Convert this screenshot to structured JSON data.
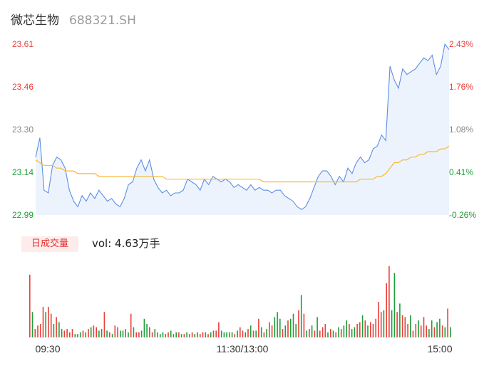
{
  "header": {
    "name": "微芯生物",
    "code": "688321.SH"
  },
  "volume_panel": {
    "badge": "日成交量",
    "summary": "vol: 4.63万手"
  },
  "colors": {
    "up": "#e8403a",
    "down": "#1e9e3a",
    "price_line": "#5b8ee6",
    "avg_line": "#f5b935",
    "area": "#edf3fd",
    "axis_text": "#888888"
  },
  "chart_data": [
    {
      "type": "line",
      "title": "",
      "x_ticks": [
        "09:30",
        "11:30/13:00",
        "15:00"
      ],
      "y_left_ticks": [
        "23.61",
        "23.46",
        "23.30",
        "23.14",
        "22.99"
      ],
      "y_right_ticks": [
        "2.43%",
        "1.76%",
        "1.08%",
        "0.41%",
        "-0.26%"
      ],
      "ylim": [
        22.99,
        23.61
      ],
      "grid": false,
      "series": [
        {
          "key": "price",
          "values": [
            23.2,
            23.27,
            23.08,
            23.07,
            23.17,
            23.2,
            23.19,
            23.16,
            23.08,
            23.04,
            23.02,
            23.06,
            23.04,
            23.07,
            23.05,
            23.08,
            23.06,
            23.04,
            23.05,
            23.03,
            23.02,
            23.05,
            23.1,
            23.11,
            23.16,
            23.19,
            23.15,
            23.19,
            23.12,
            23.09,
            23.07,
            23.08,
            23.06,
            23.07,
            23.07,
            23.08,
            23.12,
            23.11,
            23.1,
            23.08,
            23.12,
            23.1,
            23.13,
            23.12,
            23.11,
            23.12,
            23.11,
            23.09,
            23.1,
            23.09,
            23.08,
            23.1,
            23.08,
            23.09,
            23.08,
            23.08,
            23.07,
            23.08,
            23.08,
            23.06,
            23.05,
            23.04,
            23.02,
            23.01,
            23.02,
            23.05,
            23.09,
            23.13,
            23.15,
            23.15,
            23.13,
            23.1,
            23.13,
            23.11,
            23.16,
            23.14,
            23.18,
            23.2,
            23.18,
            23.19,
            23.23,
            23.24,
            23.28,
            23.26,
            23.53,
            23.48,
            23.45,
            23.52,
            23.5,
            23.51,
            23.52,
            23.54,
            23.56,
            23.55,
            23.57,
            23.5,
            23.53,
            23.61,
            23.59
          ]
        },
        {
          "key": "avg",
          "values": [
            23.19,
            23.18,
            23.17,
            23.17,
            23.17,
            23.16,
            23.16,
            23.15,
            23.15,
            23.15,
            23.14,
            23.14,
            23.14,
            23.14,
            23.14,
            23.13,
            23.13,
            23.13,
            23.13,
            23.13,
            23.13,
            23.13,
            23.13,
            23.13,
            23.13,
            23.13,
            23.13,
            23.13,
            23.13,
            23.13,
            23.13,
            23.12,
            23.12,
            23.12,
            23.12,
            23.12,
            23.12,
            23.12,
            23.12,
            23.12,
            23.12,
            23.12,
            23.12,
            23.12,
            23.12,
            23.12,
            23.12,
            23.12,
            23.12,
            23.12,
            23.12,
            23.12,
            23.12,
            23.12,
            23.11,
            23.11,
            23.11,
            23.11,
            23.11,
            23.11,
            23.11,
            23.11,
            23.11,
            23.11,
            23.11,
            23.11,
            23.11,
            23.11,
            23.11,
            23.11,
            23.11,
            23.11,
            23.11,
            23.11,
            23.11,
            23.11,
            23.11,
            23.12,
            23.12,
            23.12,
            23.12,
            23.13,
            23.13,
            23.14,
            23.16,
            23.18,
            23.18,
            23.19,
            23.19,
            23.2,
            23.2,
            23.21,
            23.21,
            23.22,
            23.22,
            23.22,
            23.23,
            23.23,
            23.24
          ]
        }
      ]
    },
    {
      "type": "bar",
      "title": "",
      "values": [
        37,
        15,
        5,
        7,
        8,
        18,
        15,
        18,
        14,
        8,
        12,
        9,
        5,
        4,
        5,
        3,
        5,
        2,
        2,
        3,
        4,
        3,
        5,
        6,
        7,
        6,
        4,
        5,
        15,
        4,
        3,
        2,
        7,
        6,
        4,
        4,
        5,
        3,
        14,
        6,
        3,
        3,
        4,
        11,
        8,
        6,
        3,
        5,
        3,
        2,
        3,
        2,
        3,
        4,
        2,
        3,
        3,
        2,
        2,
        3,
        2,
        3,
        2,
        3,
        2,
        3,
        3,
        2,
        3,
        4,
        4,
        9,
        4,
        3,
        3,
        3,
        3,
        2,
        4,
        6,
        4,
        3,
        5,
        7,
        4,
        4,
        11,
        6,
        3,
        5,
        9,
        7,
        12,
        15,
        11,
        5,
        7,
        10,
        11,
        14,
        8,
        16,
        25,
        14,
        4,
        5,
        7,
        4,
        12,
        4,
        6,
        8,
        3,
        5,
        4,
        3,
        6,
        5,
        7,
        10,
        8,
        5,
        6,
        8,
        9,
        13,
        10,
        7,
        9,
        8,
        11,
        21,
        15,
        16,
        32,
        42,
        16,
        38,
        15,
        20,
        13,
        12,
        8,
        13,
        4,
        8,
        10,
        7,
        12,
        7,
        5,
        10,
        6,
        9,
        11,
        7,
        6,
        17,
        6
      ],
      "colors": [
        "u",
        "d",
        "u",
        "u",
        "u",
        "u",
        "d",
        "u",
        "u",
        "d",
        "u",
        "d",
        "d",
        "u",
        "u",
        "u",
        "u",
        "d",
        "d",
        "d",
        "u",
        "d",
        "u",
        "d",
        "u",
        "u",
        "d",
        "d",
        "u",
        "d",
        "u",
        "d",
        "u",
        "u",
        "d",
        "d",
        "u",
        "d",
        "u",
        "d",
        "u",
        "u",
        "d",
        "d",
        "d",
        "u",
        "u",
        "d",
        "u",
        "d",
        "d",
        "u",
        "u",
        "d",
        "d",
        "d",
        "u",
        "d",
        "u",
        "d",
        "u",
        "u",
        "d",
        "d",
        "u",
        "u",
        "d",
        "u",
        "d",
        "u",
        "u",
        "u",
        "d",
        "d",
        "d",
        "d",
        "d",
        "u",
        "d",
        "u",
        "u",
        "d",
        "u",
        "d",
        "u",
        "d",
        "u",
        "d",
        "u",
        "d",
        "u",
        "u",
        "d",
        "d",
        "d",
        "u",
        "d",
        "u",
        "d",
        "d",
        "d",
        "u",
        "d",
        "u",
        "d",
        "u",
        "d",
        "u",
        "d",
        "u",
        "u",
        "u",
        "d",
        "u",
        "d",
        "u",
        "d",
        "u",
        "d",
        "d",
        "u",
        "d",
        "d",
        "u",
        "u",
        "d",
        "u",
        "d",
        "u",
        "u",
        "u",
        "u",
        "u",
        "d",
        "u",
        "u",
        "d",
        "d",
        "u",
        "d",
        "u",
        "u",
        "u",
        "d",
        "u",
        "u",
        "d",
        "u",
        "u",
        "u",
        "d",
        "d",
        "u",
        "d",
        "d",
        "u",
        "d",
        "u",
        "d"
      ]
    }
  ]
}
